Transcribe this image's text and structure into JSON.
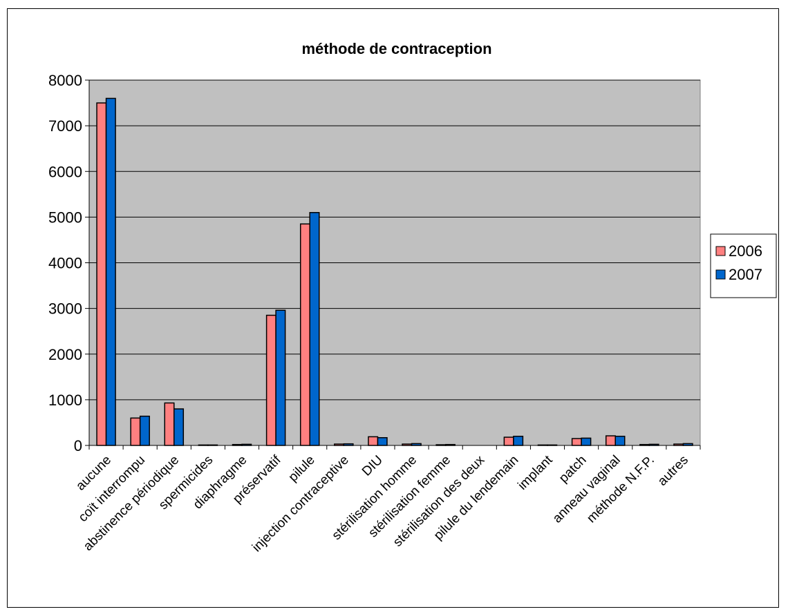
{
  "chart_data": {
    "type": "bar",
    "title": "méthode de contraception",
    "xlabel": "",
    "ylabel": "",
    "ylim": [
      0,
      8000
    ],
    "yticks": [
      0,
      1000,
      2000,
      3000,
      4000,
      5000,
      6000,
      7000,
      8000
    ],
    "grid": true,
    "legend_position": "right",
    "categories": [
      "aucune",
      "coït interrompu",
      "abstinence périodique",
      "spermicides",
      "diaphragme",
      "préservatif",
      "pilule",
      "injection contraceptive",
      "DIU",
      "stérilisation homme",
      "stérilisation femme",
      "stérilisation des deux",
      "pilule du lendemain",
      "implant",
      "patch",
      "anneau vaginal",
      "méthode N.F.P.",
      "autres"
    ],
    "series": [
      {
        "name": "2006",
        "color": "#ff8080",
        "values": [
          7500,
          600,
          930,
          10,
          20,
          2850,
          4850,
          30,
          190,
          30,
          15,
          0,
          180,
          10,
          150,
          210,
          20,
          30
        ]
      },
      {
        "name": "2007",
        "color": "#0066cc",
        "values": [
          7600,
          640,
          800,
          10,
          25,
          2960,
          5100,
          35,
          170,
          40,
          20,
          0,
          200,
          10,
          160,
          200,
          25,
          40
        ]
      }
    ],
    "plot_background": "#c0c0c0"
  }
}
